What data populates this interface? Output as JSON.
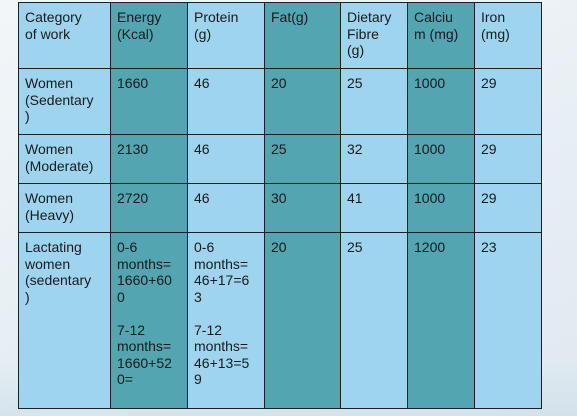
{
  "table": {
    "headers": [
      "Category\nof work",
      "Energy\n(Kcal)",
      "Protein\n(g)",
      "Fat(g)",
      "Dietary\nFibre\n(g)",
      "Calciu\nm (mg)",
      "Iron\n(mg)"
    ],
    "rows": [
      [
        "Women\n(Sedentary\n)",
        "1660",
        "46",
        "20",
        "25",
        "1000",
        "29"
      ],
      [
        "Women\n(Moderate)",
        "2130",
        "46",
        "25",
        "32",
        "1000",
        "29"
      ],
      [
        "Women\n(Heavy)",
        "2720",
        "46",
        "30",
        "41",
        "1000",
        "29"
      ],
      [
        "Lactating\nwomen\n(sedentary\n)",
        "0-6\nmonths=\n1660+60\n0\n\n7-12\nmonths=\n1660+52\n0=",
        "0-6\nmonths=\n46+17=6\n3\n\n7-12\nmonths=\n46+13=5\n9",
        "20",
        "25",
        "1200",
        "23"
      ]
    ]
  },
  "colors": {
    "light_cell": "#9fd4ee",
    "dark_cell": "#52a5b1",
    "border": "#1f1f1f"
  }
}
